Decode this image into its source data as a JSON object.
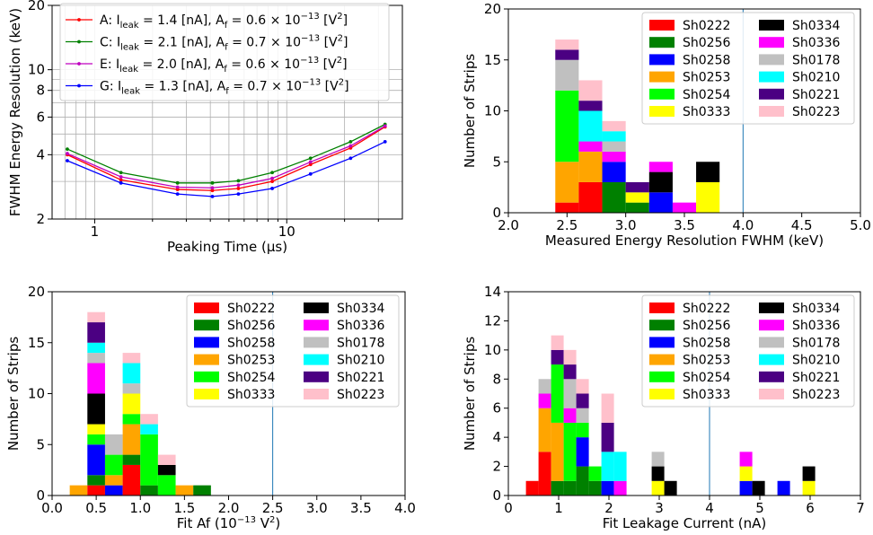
{
  "colors": {
    "Sh0222": "#ff0000",
    "Sh0256": "#008000",
    "Sh0258": "#0000ff",
    "Sh0253": "#ffa500",
    "Sh0254": "#00ff00",
    "Sh0333": "#ffff00",
    "Sh0334": "#000000",
    "Sh0336": "#ff00ff",
    "Sh0178": "#c0c0c0",
    "Sh0210": "#00ffff",
    "Sh0221": "#4b0082",
    "Sh0223": "#ffc0cb"
  },
  "chart_data": [
    {
      "id": "fwhm-vs-peaking",
      "type": "line",
      "xlabel": "Peaking Time (μs)",
      "ylabel": "FWHM Energy Resolution (keV)",
      "xscale": "log",
      "yscale": "log",
      "xlim": [
        0.6,
        40
      ],
      "ylim": [
        2,
        20
      ],
      "xticks": [
        "1",
        "10"
      ],
      "yticks": [
        "2",
        "4",
        "6",
        "8",
        "10",
        "20"
      ],
      "grid": true,
      "legend": "top-left",
      "x": [
        0.72,
        1.37,
        2.7,
        4.1,
        5.6,
        8.4,
        13.3,
        21.5,
        32.5
      ],
      "series": [
        {
          "name": "A: I_leak = 1.4 [nA], A_f = 0.6 × 10^-13 [V^2]",
          "legend_main": "A: I",
          "legend_sub": "leak",
          "legend_mid": " = 1.4 [nA], A",
          "legend_sub2": "f",
          "legend_tail": " = 0.6 × 10",
          "legend_exp": "−13",
          "legend_end": " [V",
          "legend_exp2": "2",
          "legend_close": "]",
          "color": "#ff0000",
          "values": [
            4.0,
            3.05,
            2.75,
            2.72,
            2.78,
            3.0,
            3.6,
            4.3,
            5.4
          ]
        },
        {
          "name": "C: I_leak = 2.1 [nA], A_f = 0.7 × 10^-13 [V^2]",
          "legend_main": "C: I",
          "legend_sub": "leak",
          "legend_mid": " = 2.1 [nA], A",
          "legend_sub2": "f",
          "legend_tail": " = 0.7 × 10",
          "legend_exp": "−13",
          "legend_end": " [V",
          "legend_exp2": "2",
          "legend_close": "]",
          "color": "#008000",
          "values": [
            4.25,
            3.3,
            2.95,
            2.95,
            3.02,
            3.3,
            3.85,
            4.6,
            5.55
          ]
        },
        {
          "name": "E: I_leak = 2.0 [nA], A_f = 0.6 × 10^-13 [V^2]",
          "legend_main": "E: I",
          "legend_sub": "leak",
          "legend_mid": " = 2.0 [nA], A",
          "legend_sub2": "f",
          "legend_tail": " = 0.6 × 10",
          "legend_exp": "−13",
          "legend_end": " [V",
          "legend_exp2": "2",
          "legend_close": "]",
          "color": "#bf00bf",
          "values": [
            4.05,
            3.15,
            2.82,
            2.8,
            2.88,
            3.1,
            3.7,
            4.4,
            5.45
          ]
        },
        {
          "name": "G: I_leak = 1.3 [nA], A_f = 0.7 × 10^-13 [V^2]",
          "legend_main": "G: I",
          "legend_sub": "leak",
          "legend_mid": " = 1.3 [nA], A",
          "legend_sub2": "f",
          "legend_tail": " = 0.7 × 10",
          "legend_exp": "−13",
          "legend_end": " [V",
          "legend_exp2": "2",
          "legend_close": "]",
          "color": "#0000ff",
          "values": [
            3.75,
            2.95,
            2.62,
            2.55,
            2.62,
            2.78,
            3.25,
            3.85,
            4.6
          ]
        }
      ]
    },
    {
      "id": "resolution-hist",
      "type": "bar",
      "stacked": true,
      "xlabel": "Measured Energy Resolution FWHM (keV)",
      "ylabel": "Number of Strips",
      "xlim": [
        2.0,
        5.0
      ],
      "ylim": [
        0,
        20
      ],
      "xticks": [
        "2.0",
        "2.5",
        "3.0",
        "3.5",
        "4.0",
        "4.5",
        "5.0"
      ],
      "yticks": [
        "0",
        "5",
        "10",
        "15",
        "20"
      ],
      "vline": 4.0,
      "legend": "top-right",
      "bin_edges": [
        2.4,
        2.6,
        2.8,
        3.0,
        3.2,
        3.4,
        3.6,
        3.8
      ],
      "series_order": [
        "Sh0222",
        "Sh0256",
        "Sh0258",
        "Sh0253",
        "Sh0254",
        "Sh0333",
        "Sh0334",
        "Sh0336",
        "Sh0178",
        "Sh0210",
        "Sh0221",
        "Sh0223"
      ],
      "series": [
        {
          "name": "Sh0222",
          "values": [
            1,
            3,
            0,
            0,
            0,
            0,
            0
          ]
        },
        {
          "name": "Sh0256",
          "values": [
            0,
            0,
            3,
            1,
            0,
            0,
            0
          ]
        },
        {
          "name": "Sh0258",
          "values": [
            0,
            0,
            2,
            0,
            2,
            0,
            0
          ]
        },
        {
          "name": "Sh0253",
          "values": [
            4,
            3,
            0,
            0,
            0,
            0,
            0
          ]
        },
        {
          "name": "Sh0254",
          "values": [
            7,
            0,
            0,
            0,
            0,
            0,
            0
          ]
        },
        {
          "name": "Sh0333",
          "values": [
            0,
            0,
            0,
            1,
            0,
            0,
            3
          ]
        },
        {
          "name": "Sh0334",
          "values": [
            0,
            0,
            0,
            0,
            2,
            0,
            2
          ]
        },
        {
          "name": "Sh0336",
          "values": [
            0,
            1,
            1,
            0,
            1,
            1,
            0
          ]
        },
        {
          "name": "Sh0178",
          "values": [
            3,
            0,
            1,
            0,
            0,
            0,
            0
          ]
        },
        {
          "name": "Sh0210",
          "values": [
            0,
            3,
            1,
            0,
            0,
            0,
            0
          ]
        },
        {
          "name": "Sh0221",
          "values": [
            1,
            1,
            0,
            1,
            0,
            0,
            0
          ]
        },
        {
          "name": "Sh0223",
          "values": [
            1,
            2,
            1,
            0,
            0,
            0,
            0
          ]
        }
      ]
    },
    {
      "id": "af-hist",
      "type": "bar",
      "stacked": true,
      "xlabel": "Fit Af (10^-13 V^2)",
      "xlabel_main": "Fit Af (10",
      "xlabel_exp": "−13",
      "xlabel_mid": " V",
      "xlabel_exp2": "2",
      "xlabel_end": ")",
      "ylabel": "Number of Strips",
      "xlim": [
        0.0,
        4.0
      ],
      "ylim": [
        0,
        20
      ],
      "xticks": [
        "0.0",
        "0.5",
        "1.0",
        "1.5",
        "2.0",
        "2.5",
        "3.0",
        "3.5",
        "4.0"
      ],
      "yticks": [
        "0",
        "5",
        "10",
        "15",
        "20"
      ],
      "vline": 2.5,
      "legend": "top-right",
      "bin_edges": [
        0.2,
        0.4,
        0.6,
        0.8,
        1.0,
        1.2,
        1.4,
        1.6,
        1.8
      ],
      "series_order": [
        "Sh0222",
        "Sh0256",
        "Sh0258",
        "Sh0253",
        "Sh0254",
        "Sh0333",
        "Sh0334",
        "Sh0336",
        "Sh0178",
        "Sh0210",
        "Sh0221",
        "Sh0223"
      ],
      "series": [
        {
          "name": "Sh0222",
          "values": [
            0,
            1,
            0,
            3,
            0,
            0,
            0,
            0
          ]
        },
        {
          "name": "Sh0256",
          "values": [
            0,
            1,
            0,
            1,
            1,
            0,
            0,
            1
          ]
        },
        {
          "name": "Sh0258",
          "values": [
            0,
            3,
            1,
            0,
            0,
            0,
            0,
            0
          ]
        },
        {
          "name": "Sh0253",
          "values": [
            1,
            0,
            1,
            3,
            0,
            0,
            1,
            0
          ]
        },
        {
          "name": "Sh0254",
          "values": [
            0,
            1,
            2,
            1,
            5,
            2,
            0,
            0
          ]
        },
        {
          "name": "Sh0333",
          "values": [
            0,
            1,
            0,
            2,
            0,
            0,
            0,
            0
          ]
        },
        {
          "name": "Sh0334",
          "values": [
            0,
            3,
            0,
            0,
            0,
            1,
            0,
            0
          ]
        },
        {
          "name": "Sh0336",
          "values": [
            0,
            3,
            0,
            0,
            0,
            0,
            0,
            0
          ]
        },
        {
          "name": "Sh0178",
          "values": [
            0,
            1,
            2,
            1,
            0,
            0,
            0,
            0
          ]
        },
        {
          "name": "Sh0210",
          "values": [
            0,
            1,
            0,
            2,
            1,
            0,
            0,
            0
          ]
        },
        {
          "name": "Sh0221",
          "values": [
            0,
            2,
            0,
            0,
            0,
            0,
            0,
            0
          ]
        },
        {
          "name": "Sh0223",
          "values": [
            0,
            1,
            0,
            1,
            1,
            1,
            0,
            0
          ]
        }
      ]
    },
    {
      "id": "leakage-hist",
      "type": "bar",
      "stacked": true,
      "xlabel": "Fit Leakage Current (nA)",
      "ylabel": "Number of Strips",
      "xlim": [
        0,
        7
      ],
      "ylim": [
        0,
        14
      ],
      "xticks": [
        "0",
        "1",
        "2",
        "3",
        "4",
        "5",
        "6",
        "7"
      ],
      "yticks": [
        "0",
        "2",
        "4",
        "6",
        "8",
        "10",
        "12",
        "14"
      ],
      "vline": 4.0,
      "legend": "top-right",
      "bin_edges": [
        0.35,
        0.6,
        0.85,
        1.1,
        1.35,
        1.6,
        1.85,
        2.1,
        2.35,
        2.6,
        2.85,
        3.1,
        3.35,
        3.6,
        3.85,
        4.1,
        4.35,
        4.6,
        4.85,
        5.1,
        5.35,
        5.6,
        5.85,
        6.1,
        6.35
      ],
      "series_order": [
        "Sh0222",
        "Sh0256",
        "Sh0258",
        "Sh0253",
        "Sh0254",
        "Sh0333",
        "Sh0334",
        "Sh0336",
        "Sh0178",
        "Sh0210",
        "Sh0221",
        "Sh0223"
      ],
      "series": [
        {
          "name": "Sh0222",
          "values": [
            1,
            3,
            0,
            0,
            0,
            0,
            0,
            0,
            0,
            0,
            0,
            0,
            0,
            0,
            0,
            0,
            0,
            0,
            0,
            0,
            0,
            0,
            0,
            0
          ]
        },
        {
          "name": "Sh0256",
          "values": [
            0,
            0,
            1,
            1,
            2,
            1,
            0,
            0,
            0,
            0,
            0,
            0,
            0,
            0,
            0,
            0,
            0,
            0,
            0,
            0,
            0,
            0,
            0,
            0
          ]
        },
        {
          "name": "Sh0258",
          "values": [
            0,
            0,
            0,
            0,
            2,
            0,
            1,
            0,
            0,
            0,
            0,
            0,
            0,
            0,
            0,
            0,
            0,
            1,
            0,
            0,
            1,
            0,
            0,
            0
          ]
        },
        {
          "name": "Sh0253",
          "values": [
            0,
            3,
            4,
            0,
            0,
            0,
            0,
            0,
            0,
            0,
            0,
            0,
            0,
            0,
            0,
            0,
            0,
            0,
            0,
            0,
            0,
            0,
            0,
            0
          ]
        },
        {
          "name": "Sh0254",
          "values": [
            0,
            0,
            4,
            4,
            1,
            1,
            0,
            0,
            0,
            0,
            0,
            0,
            0,
            0,
            0,
            0,
            0,
            0,
            0,
            0,
            0,
            0,
            0,
            0
          ]
        },
        {
          "name": "Sh0333",
          "values": [
            0,
            0,
            0,
            0,
            0,
            0,
            0,
            0,
            0,
            0,
            1,
            0,
            0,
            0,
            0,
            0,
            0,
            1,
            0,
            0,
            0,
            0,
            1,
            0
          ]
        },
        {
          "name": "Sh0334",
          "values": [
            0,
            0,
            0,
            0,
            0,
            0,
            0,
            0,
            0,
            0,
            1,
            1,
            0,
            0,
            0,
            0,
            0,
            0,
            1,
            0,
            0,
            0,
            1,
            0
          ]
        },
        {
          "name": "Sh0336",
          "values": [
            0,
            1,
            0,
            1,
            0,
            0,
            0,
            1,
            0,
            0,
            0,
            0,
            0,
            0,
            0,
            0,
            0,
            1,
            0,
            0,
            0,
            0,
            0,
            0
          ]
        },
        {
          "name": "Sh0178",
          "values": [
            0,
            1,
            0,
            2,
            1,
            0,
            0,
            0,
            0,
            0,
            1,
            0,
            0,
            0,
            0,
            0,
            0,
            0,
            0,
            0,
            0,
            0,
            0,
            0
          ]
        },
        {
          "name": "Sh0210",
          "values": [
            0,
            0,
            0,
            0,
            0,
            0,
            2,
            2,
            0,
            0,
            0,
            0,
            0,
            0,
            0,
            0,
            0,
            0,
            0,
            0,
            0,
            0,
            0,
            0
          ]
        },
        {
          "name": "Sh0221",
          "values": [
            0,
            0,
            1,
            1,
            1,
            0,
            2,
            0,
            0,
            0,
            0,
            0,
            0,
            0,
            0,
            0,
            0,
            0,
            0,
            0,
            0,
            0,
            0,
            0
          ]
        },
        {
          "name": "Sh0223",
          "values": [
            0,
            0,
            1,
            1,
            1,
            0,
            2,
            0,
            0,
            0,
            0,
            0,
            0,
            0,
            0,
            0,
            0,
            0,
            0,
            0,
            0,
            0,
            0,
            0
          ]
        }
      ]
    }
  ]
}
